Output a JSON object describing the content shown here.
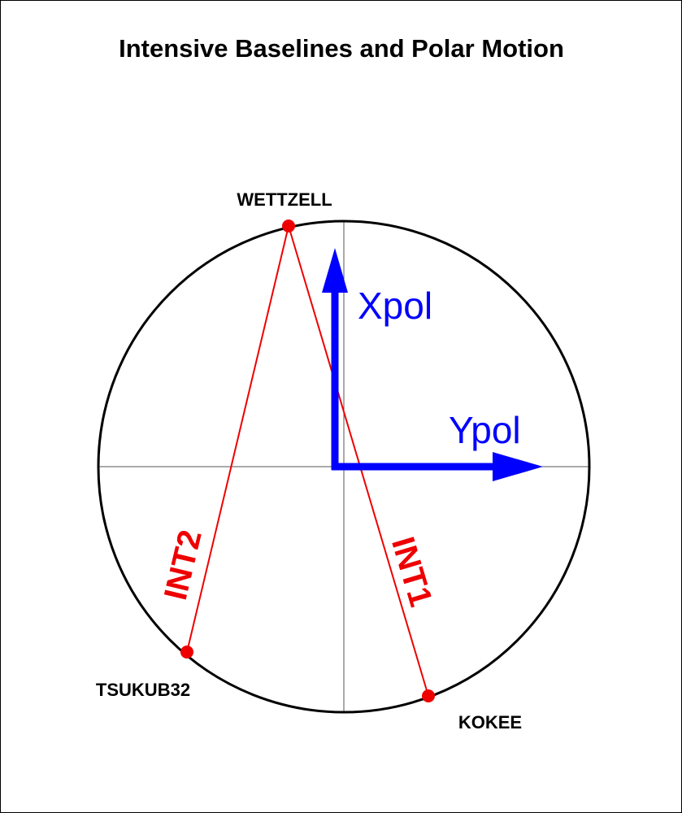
{
  "title": "Intensive Baselines and Polar Motion",
  "stations": [
    {
      "label": "WETTZELL"
    },
    {
      "label": "TSUKUB32"
    },
    {
      "label": "KOKEE"
    }
  ],
  "baselines": [
    {
      "label": "INT2"
    },
    {
      "label": "INT1"
    }
  ],
  "axes": [
    {
      "label": "Xpol"
    },
    {
      "label": "Ypol"
    }
  ]
}
